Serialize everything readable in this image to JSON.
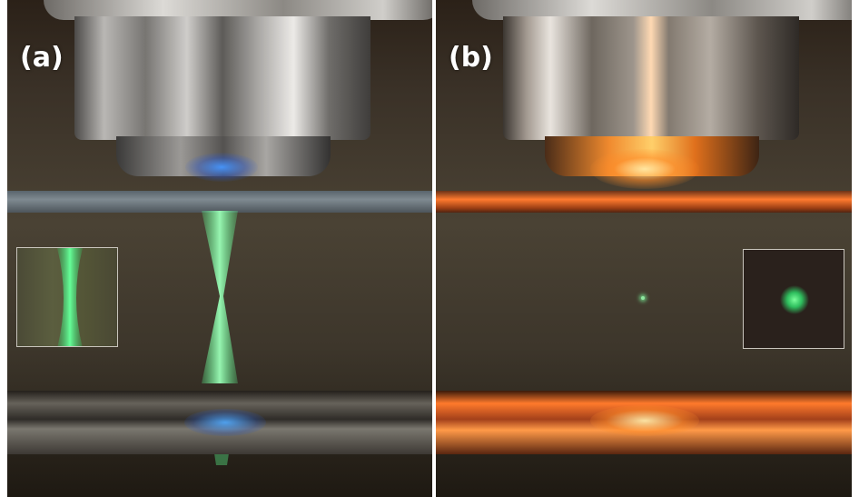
{
  "panels": [
    {
      "label": "(a)",
      "accent": "#2f7dff"
    },
    {
      "label": "(b)",
      "accent": "#ff7a2c"
    }
  ],
  "colors": {
    "beam_green": "#59f08a",
    "glow_orange": "#ff7a2c",
    "glow_blue": "#2f7dff"
  }
}
